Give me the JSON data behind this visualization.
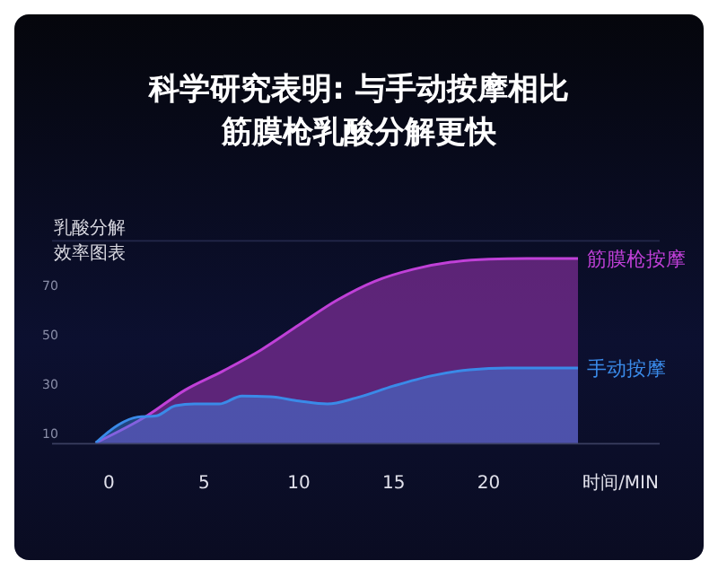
{
  "chart_data": {
    "type": "area",
    "title": "科学研究表明: 与手动按摩相比筋膜枪乳酸分解更快",
    "ylabel": "乳酸分解效率图表",
    "xlabel": "时间/MIN",
    "xlim": [
      -3,
      29
    ],
    "ylim": [
      6,
      88
    ],
    "xticks": [
      0,
      5,
      10,
      15,
      20
    ],
    "yticks": [
      10,
      30,
      50,
      70
    ],
    "series": [
      {
        "name": "筋膜枪按摩",
        "color": "#c040d8",
        "x": [
          -0.7,
          2,
          4,
          6,
          8,
          10,
          12,
          14,
          16,
          18,
          20,
          22,
          24.7
        ],
        "values": [
          6.4,
          17.3,
          27.7,
          35.4,
          43.9,
          54,
          64,
          71.7,
          76.5,
          79.4,
          80.6,
          80.9,
          80.9
        ]
      },
      {
        "name": "手动按摩",
        "color": "#3a8ae8",
        "x": [
          -0.7,
          0.5,
          1.5,
          2.5,
          3.5,
          4.5,
          5.8,
          7,
          8.5,
          10,
          11.5,
          13,
          15,
          17,
          19,
          21,
          24.7
        ],
        "values": [
          6.4,
          13.7,
          16.8,
          17.3,
          21.4,
          22.1,
          22.1,
          25.3,
          25,
          23.3,
          22.1,
          24.5,
          29.4,
          33.5,
          35.9,
          36.6,
          36.6
        ]
      }
    ]
  }
}
